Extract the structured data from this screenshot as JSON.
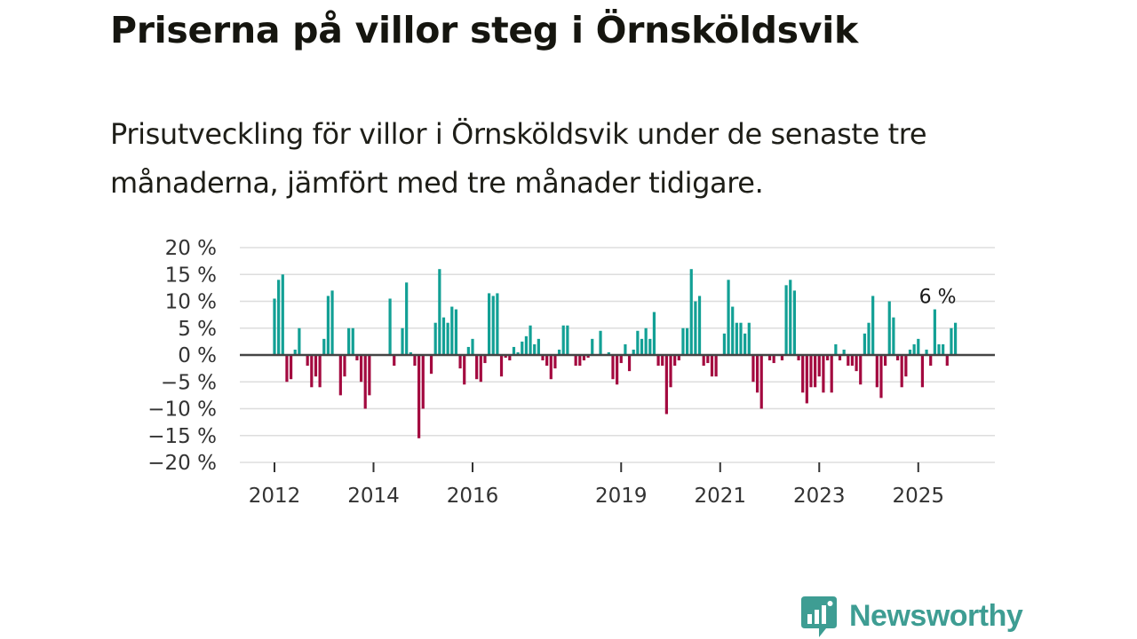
{
  "title": "Priserna på villor steg i Örnsköldsvik",
  "subtitle": "Prisutveckling för villor i Örnsköldsvik under de senaste tre månaderna, jämfört med tre månader tidigare.",
  "logo_text": "Newsworthy",
  "colors": {
    "positive": "#12a095",
    "negative": "#a3093f",
    "grid": "#dddddd",
    "zero": "#444444",
    "logo": "#3e9d93"
  },
  "chart_data": {
    "type": "bar",
    "title": "Priserna på villor steg i Örnsköldsvik",
    "xlabel": "",
    "ylabel": "",
    "ylim": [
      -20,
      20
    ],
    "y_ticks": [
      20,
      15,
      10,
      5,
      0,
      -5,
      -10,
      -15,
      -20
    ],
    "y_tick_labels": [
      "20 %",
      "15 %",
      "10 %",
      "5 %",
      "0 %",
      "−5 %",
      "−10 %",
      "−15 %",
      "−20 %"
    ],
    "x_ticks": [
      "2012",
      "2014",
      "2016",
      "2019",
      "2021",
      "2023",
      "2025"
    ],
    "x_tick_months": [
      0,
      24,
      48,
      84,
      108,
      132,
      156
    ],
    "start": "2012-01",
    "annotation": {
      "label": "6 %",
      "index": 165
    },
    "values": [
      10.5,
      14,
      15,
      -5,
      -4.5,
      1,
      5,
      0,
      -2,
      -6,
      -4,
      -6,
      3,
      11,
      12,
      0,
      -7.5,
      -4,
      5,
      5,
      -1,
      -5,
      -10,
      -7.5,
      0,
      0,
      0,
      0,
      10.5,
      -2,
      0,
      5,
      13.5,
      0.5,
      -2,
      -15.5,
      -10,
      0,
      -3.5,
      6,
      16,
      7,
      6,
      9,
      8.5,
      -2.5,
      -5.5,
      1.5,
      3,
      -4.5,
      -5,
      -1.5,
      11.5,
      11,
      11.5,
      -4,
      -0.5,
      -1,
      1.5,
      0.5,
      2.5,
      3.5,
      5.5,
      2,
      3,
      -1,
      -2,
      -4.5,
      -2.5,
      1,
      5.5,
      5.5,
      0,
      -2,
      -2,
      -1,
      -0.5,
      3,
      0,
      4.5,
      0,
      0.5,
      -4.5,
      -5.5,
      -1.5,
      2,
      -3,
      1,
      4.5,
      3,
      5,
      3,
      8,
      -2,
      -2,
      -11,
      -6,
      -2,
      -1,
      5,
      5,
      16,
      10,
      11,
      -2,
      -1.5,
      -4,
      -4,
      0,
      4,
      14,
      9,
      6,
      6,
      4,
      6,
      -5,
      -7,
      -10,
      0,
      -1,
      -1.5,
      0,
      -1,
      13,
      14,
      12,
      -1,
      -7,
      -9,
      -6,
      -6,
      -4,
      -7,
      -1,
      -7,
      2,
      -1,
      1,
      -2,
      -2,
      -3,
      -5.5,
      4,
      6,
      11,
      -6,
      -8,
      -2,
      10,
      7,
      -1,
      -6,
      -4,
      1,
      2,
      3,
      -6,
      1,
      -2,
      8.5,
      2,
      2,
      -2,
      5,
      6
    ]
  }
}
